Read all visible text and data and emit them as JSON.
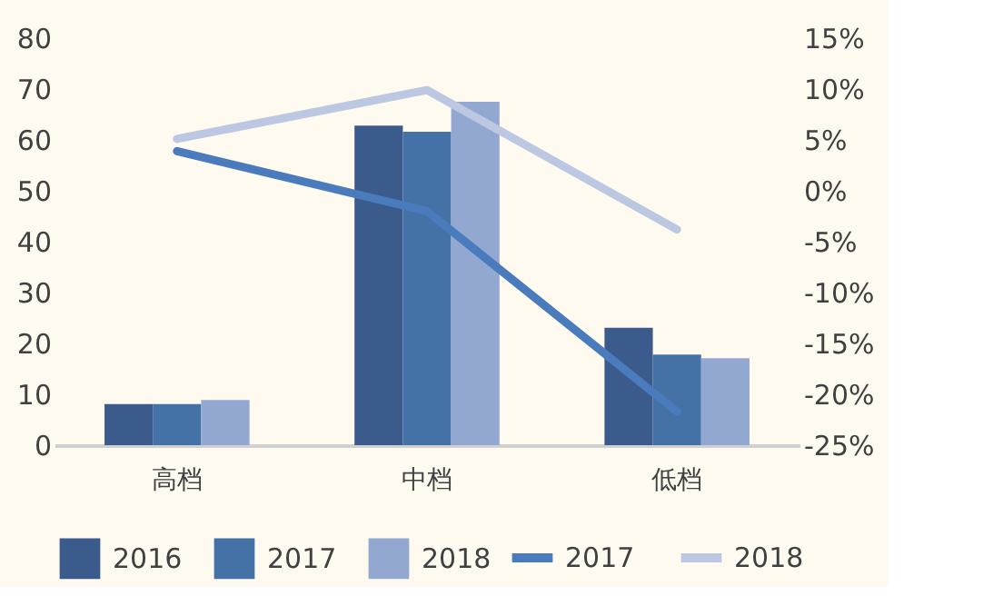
{
  "chart_data": {
    "type": "bar",
    "categories": [
      "高档",
      "中档",
      "低档"
    ],
    "series": [
      {
        "name": "2016",
        "color": "#3a5b8b",
        "values": [
          8.1,
          62.8,
          23.1
        ]
      },
      {
        "name": "2017",
        "color": "#4471a6",
        "values": [
          8.1,
          61.6,
          17.8
        ]
      },
      {
        "name": "2018",
        "color": "#93a8d0",
        "values": [
          8.9,
          67.5,
          17.1
        ]
      },
      {
        "name": "2017",
        "type": "line",
        "axis": "y2",
        "color": "#4a7bbd",
        "values": [
          3.9,
          -2.0,
          -21.7
        ]
      },
      {
        "name": "2018",
        "type": "line",
        "axis": "y2",
        "color": "#bcc7e2",
        "values": [
          5.1,
          9.9,
          -3.8
        ]
      }
    ],
    "ylim": [
      0,
      80
    ],
    "yticks": [
      0,
      10,
      20,
      30,
      40,
      50,
      60,
      70,
      80
    ],
    "y2lim": [
      -25,
      15
    ],
    "y2ticks": [
      {
        "value": -25,
        "label": "-25%"
      },
      {
        "value": -20,
        "label": "-20%"
      },
      {
        "value": -15,
        "label": "-15%"
      },
      {
        "value": -10,
        "label": "-10%"
      },
      {
        "value": -5,
        "label": "-5%"
      },
      {
        "value": 0,
        "label": "0%"
      },
      {
        "value": 5,
        "label": "5%"
      },
      {
        "value": 10,
        "label": "10%"
      },
      {
        "value": 15,
        "label": "15%"
      }
    ],
    "grid": false,
    "legend": "bottom"
  }
}
